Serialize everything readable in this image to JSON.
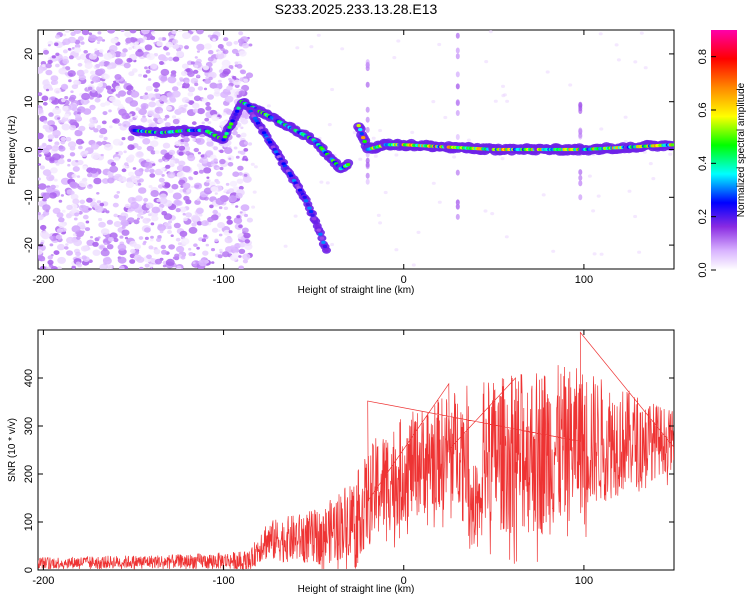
{
  "title": "S233.2025.233.13.28.E13",
  "chart_data": [
    {
      "type": "heatmap",
      "xlabel": "Height of straight line (km)",
      "ylabel": "Frequency (Hz)",
      "xlim": [
        -203,
        150
      ],
      "ylim": [
        -25,
        25
      ],
      "xticks": [
        -200,
        -100,
        0,
        100
      ],
      "yticks": [
        -20,
        -10,
        0,
        10,
        20
      ],
      "colorbar": {
        "label": "Normalized spectral amplitude",
        "range": [
          0,
          0.9
        ],
        "ticks": [
          "0.0",
          "0.2",
          "0.4",
          "0.6",
          "0.8"
        ],
        "colors": [
          "#ffffff",
          "#d9b3ff",
          "#8a2be2",
          "#0000ff",
          "#00ffff",
          "#00ff00",
          "#ffff00",
          "#ff8800",
          "#ff0000",
          "#ff00aa"
        ]
      },
      "features": [
        {
          "name": "noise",
          "x": [
            -203,
            -85
          ],
          "y": [
            -25,
            25
          ],
          "amplitude": 0.15
        },
        {
          "name": "branch-upper",
          "points": [
            [
              -150,
              4
            ],
            [
              -135,
              3.5
            ],
            [
              -120,
              4
            ],
            [
              -110,
              4
            ],
            [
              -100,
              2
            ],
            [
              -90,
              10
            ],
            [
              -80,
              8
            ],
            [
              -70,
              6
            ],
            [
              -60,
              4
            ],
            [
              -50,
              2
            ],
            [
              -40,
              -2
            ],
            [
              -35,
              -4
            ],
            [
              -30,
              -3
            ]
          ],
          "amplitude": 0.45
        },
        {
          "name": "branch-lower",
          "points": [
            [
              -85,
              8
            ],
            [
              -75,
              2
            ],
            [
              -65,
              -4
            ],
            [
              -55,
              -10
            ],
            [
              -48,
              -16
            ],
            [
              -42,
              -22
            ]
          ],
          "amplitude": 0.3
        },
        {
          "name": "steady-line",
          "points": [
            [
              -25,
              5
            ],
            [
              -20,
              0
            ],
            [
              -10,
              1
            ],
            [
              0,
              1
            ],
            [
              25,
              0.5
            ],
            [
              50,
              0
            ],
            [
              75,
              0
            ],
            [
              100,
              0
            ],
            [
              125,
              0.5
            ],
            [
              150,
              1
            ]
          ],
          "amplitude": 0.6
        }
      ]
    },
    {
      "type": "line",
      "xlabel": "Height of straight line (km)",
      "ylabel": "SNR (10 * v/v)",
      "xlim": [
        -203,
        150
      ],
      "ylim": [
        0,
        500
      ],
      "xticks": [
        -200,
        -100,
        0,
        100
      ],
      "yticks": [
        0,
        100,
        200,
        300,
        400
      ],
      "color": "#ee3333",
      "envelope": [
        {
          "x": -203,
          "base": 15,
          "spread": 12
        },
        {
          "x": -120,
          "base": 18,
          "spread": 15
        },
        {
          "x": -85,
          "base": 20,
          "spread": 20
        },
        {
          "x": -78,
          "base": 60,
          "spread": 40
        },
        {
          "x": -45,
          "base": 70,
          "spread": 60
        },
        {
          "x": -25,
          "base": 120,
          "spread": 90
        },
        {
          "x": -15,
          "base": 170,
          "spread": 110
        },
        {
          "x": 0,
          "base": 210,
          "spread": 110
        },
        {
          "x": 30,
          "base": 260,
          "spread": 120
        },
        {
          "x": 50,
          "base": 240,
          "spread": 160
        },
        {
          "x": 80,
          "base": 250,
          "spread": 180
        },
        {
          "x": 100,
          "base": 270,
          "spread": 150
        },
        {
          "x": 150,
          "base": 270,
          "spread": 60
        }
      ],
      "peaks": [
        {
          "x": 98,
          "y": 495
        },
        {
          "x": -20,
          "y": 352
        },
        {
          "x": 25,
          "y": 388
        },
        {
          "x": 62,
          "y": 400
        }
      ]
    }
  ]
}
